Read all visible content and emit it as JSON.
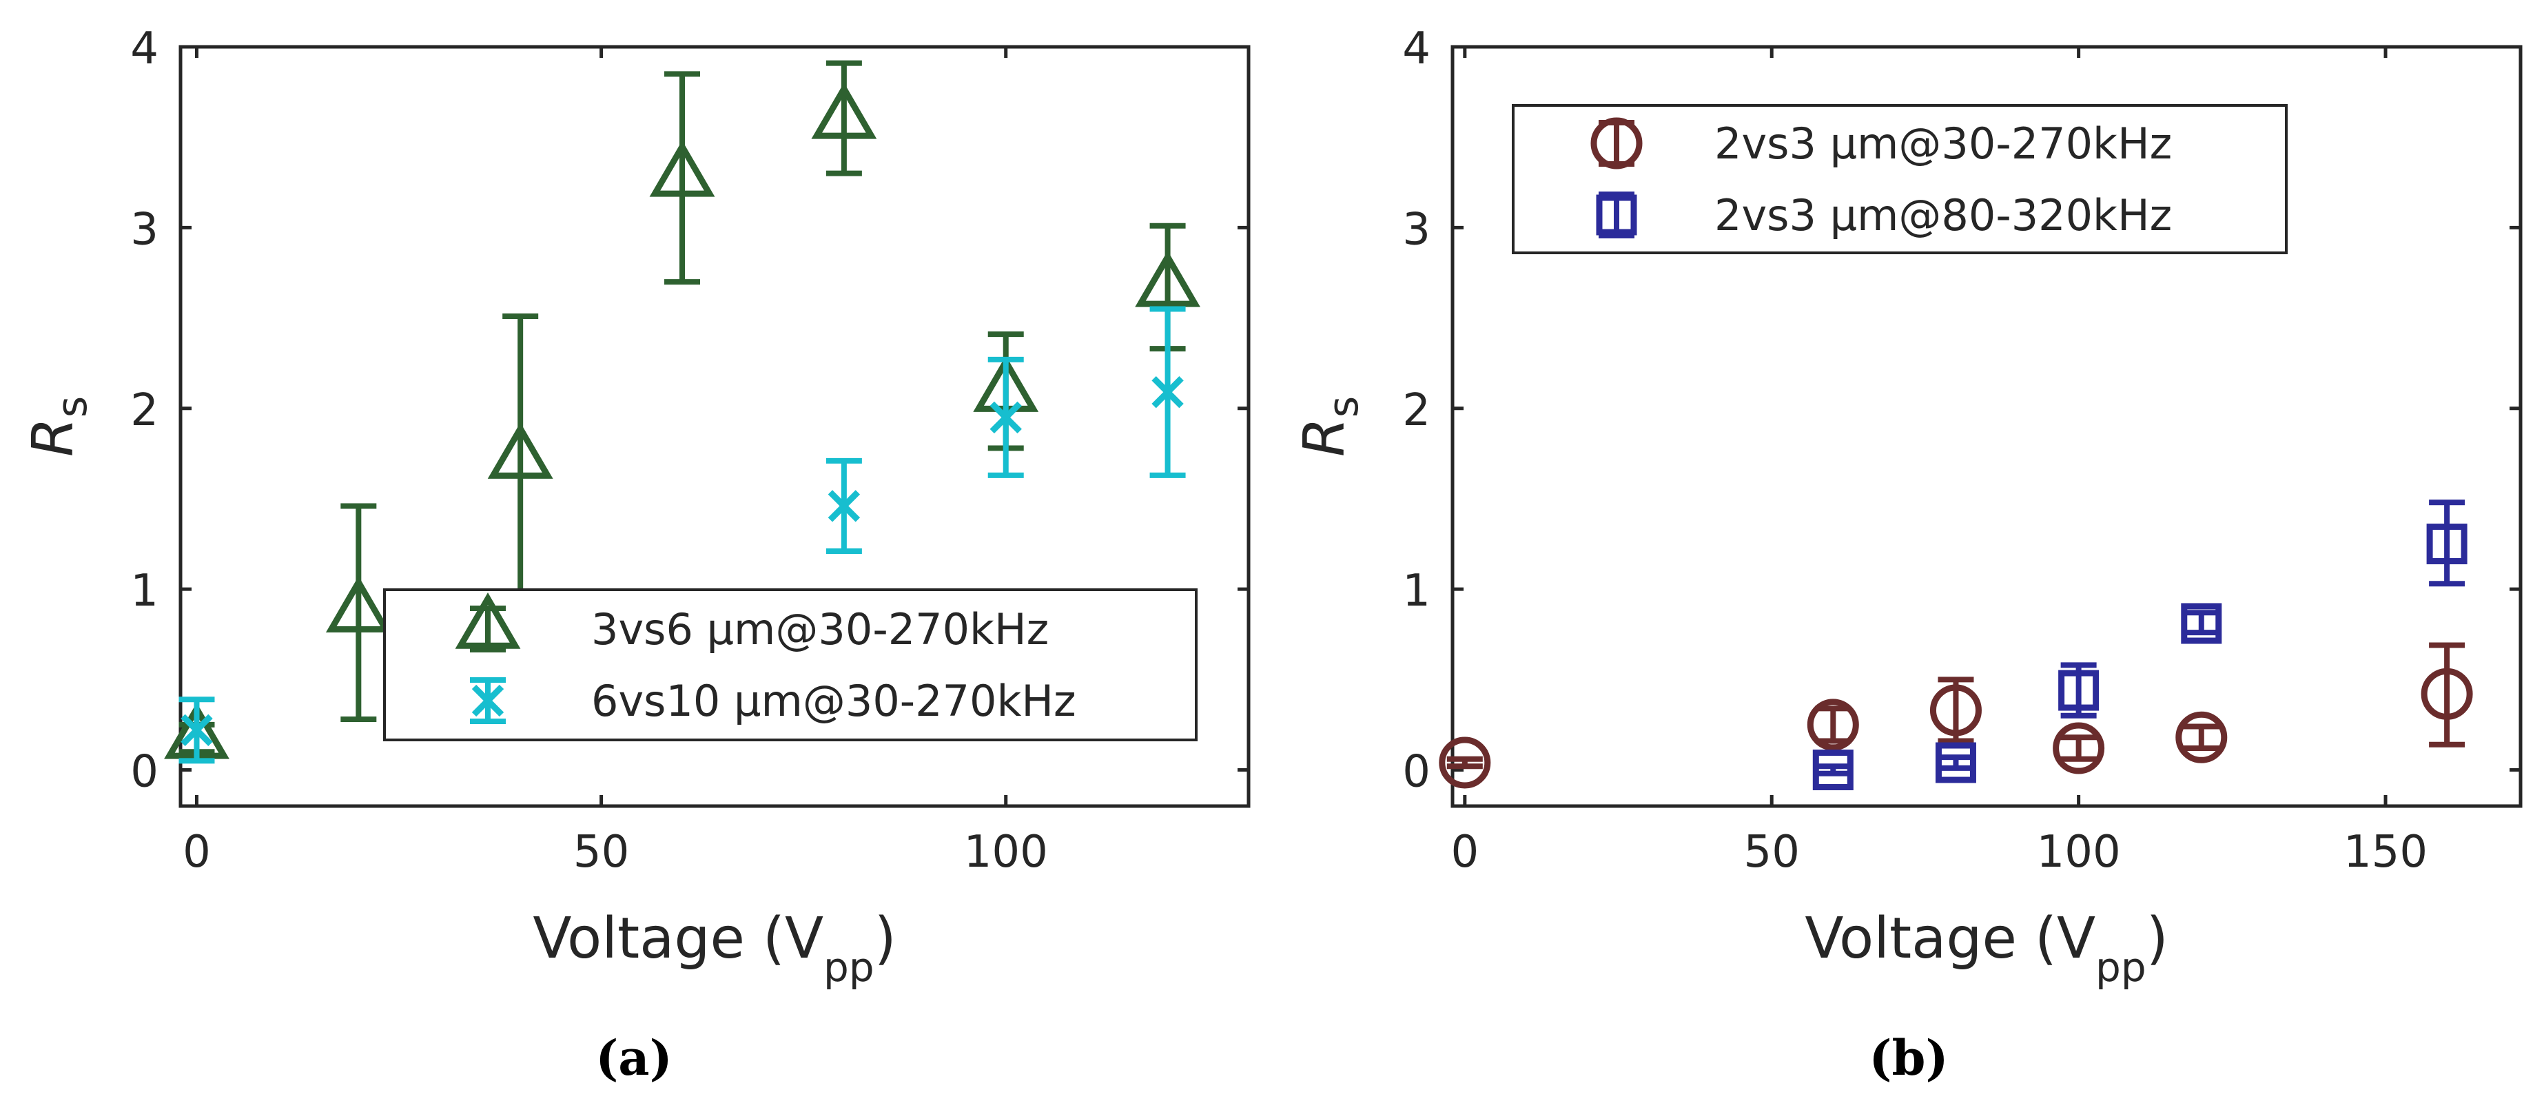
{
  "chart_data": [
    {
      "type": "scatter",
      "caption": "(a)",
      "xlabel": "Voltage (V",
      "xlabel_sub": "pp",
      "xlabel_close": ")",
      "ylabel": "R",
      "ylabel_sub": "s",
      "xlim": [
        -2,
        130
      ],
      "ylim": [
        -0.2,
        4
      ],
      "xticks": [
        0,
        50,
        100
      ],
      "yticks": [
        0,
        1,
        2,
        3,
        4
      ],
      "legend_position": "lower-right",
      "series": [
        {
          "name": "3vs6 µm@30-270kHz",
          "marker": "triangle",
          "color": "#2e6130",
          "points": [
            {
              "x": 0,
              "y": 0.17,
              "lo": 0.1,
              "hi": 0.25
            },
            {
              "x": 20,
              "y": 0.87,
              "lo": 0.28,
              "hi": 1.46
            },
            {
              "x": 40,
              "y": 1.72,
              "lo": 0.93,
              "hi": 2.51
            },
            {
              "x": 60,
              "y": 3.28,
              "lo": 2.7,
              "hi": 3.85
            },
            {
              "x": 80,
              "y": 3.6,
              "lo": 3.3,
              "hi": 3.91
            },
            {
              "x": 100,
              "y": 2.09,
              "lo": 1.78,
              "hi": 2.41
            },
            {
              "x": 120,
              "y": 2.67,
              "lo": 2.33,
              "hi": 3.01
            }
          ]
        },
        {
          "name": "6vs10 µm@30-270kHz",
          "marker": "x",
          "color": "#17becf",
          "points": [
            {
              "x": 0,
              "y": 0.22,
              "lo": 0.05,
              "hi": 0.39
            },
            {
              "x": 80,
              "y": 1.46,
              "lo": 1.21,
              "hi": 1.71
            },
            {
              "x": 100,
              "y": 1.95,
              "lo": 1.63,
              "hi": 2.27
            },
            {
              "x": 120,
              "y": 2.09,
              "lo": 1.63,
              "hi": 2.55
            }
          ]
        }
      ]
    },
    {
      "type": "scatter",
      "caption": "(b)",
      "xlabel": "Voltage (V",
      "xlabel_sub": "pp",
      "xlabel_close": ")",
      "ylabel": "R",
      "ylabel_sub": "s",
      "xlim": [
        -2,
        172
      ],
      "ylim": [
        -0.2,
        4
      ],
      "xticks": [
        0,
        50,
        100,
        150
      ],
      "yticks": [
        0,
        1,
        2,
        3,
        4
      ],
      "legend_position": "upper-left",
      "series": [
        {
          "name": "2vs3 µm@30-270kHz",
          "marker": "circle",
          "color": "#6a2c2c",
          "points": [
            {
              "x": 0,
              "y": 0.04,
              "lo": 0.02,
              "hi": 0.06
            },
            {
              "x": 60,
              "y": 0.25,
              "lo": 0.16,
              "hi": 0.34
            },
            {
              "x": 80,
              "y": 0.33,
              "lo": 0.16,
              "hi": 0.5
            },
            {
              "x": 100,
              "y": 0.12,
              "lo": 0.06,
              "hi": 0.18
            },
            {
              "x": 120,
              "y": 0.18,
              "lo": 0.12,
              "hi": 0.24
            },
            {
              "x": 160,
              "y": 0.42,
              "lo": 0.14,
              "hi": 0.69
            }
          ]
        },
        {
          "name": "2vs3 µm@80-320kHz",
          "marker": "square",
          "color": "#2b2b9a",
          "points": [
            {
              "x": 60,
              "y": 0.0,
              "lo": -0.02,
              "hi": 0.02
            },
            {
              "x": 80,
              "y": 0.04,
              "lo": 0.01,
              "hi": 0.07
            },
            {
              "x": 100,
              "y": 0.44,
              "lo": 0.3,
              "hi": 0.58
            },
            {
              "x": 120,
              "y": 0.81,
              "lo": 0.76,
              "hi": 0.87
            },
            {
              "x": 160,
              "y": 1.25,
              "lo": 1.03,
              "hi": 1.48
            }
          ]
        }
      ]
    }
  ]
}
